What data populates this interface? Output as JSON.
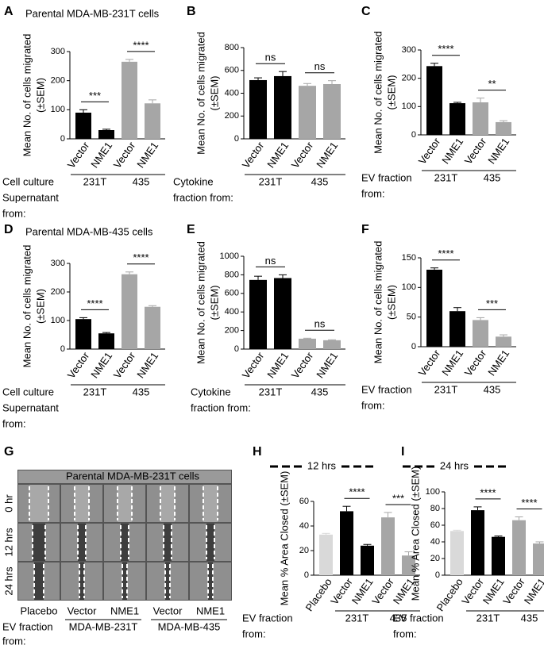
{
  "chart_data": [
    {
      "type": "bar",
      "label": "A",
      "title": "Parental MDA-MB-231T cells",
      "ylabel": [
        "Mean No. of cells migrated",
        "(±SEM)"
      ],
      "categories": [
        "Vector",
        "NME1",
        "Vector",
        "NME1"
      ],
      "values": [
        90,
        30,
        265,
        122
      ],
      "errors": [
        10,
        3,
        8,
        12
      ],
      "colors": [
        "#000000",
        "#000000",
        "#a6a6a6",
        "#a6a6a6"
      ],
      "ylim": [
        0,
        300
      ],
      "yticks": [
        0,
        100,
        200,
        300
      ],
      "groups": [
        {
          "name": "231T",
          "significance": "***"
        },
        {
          "name": "435",
          "significance": "****"
        }
      ],
      "xlabel": [
        "Cell  culture",
        "Supernatant",
        "from:"
      ]
    },
    {
      "type": "bar",
      "label": "B",
      "ylabel": [
        "Mean No. of cells migrated",
        "(±SEM)"
      ],
      "categories": [
        "Vector",
        "NME1",
        "Vector",
        "NME1"
      ],
      "values": [
        515,
        550,
        465,
        480
      ],
      "errors": [
        20,
        40,
        20,
        30
      ],
      "colors": [
        "#000000",
        "#000000",
        "#a6a6a6",
        "#a6a6a6"
      ],
      "ylim": [
        0,
        800
      ],
      "yticks": [
        0,
        200,
        400,
        600,
        800
      ],
      "groups": [
        {
          "name": "231T",
          "significance": "ns"
        },
        {
          "name": "435",
          "significance": "ns"
        }
      ],
      "xlabel": [
        "Cytokine",
        "fraction from:"
      ]
    },
    {
      "type": "bar",
      "label": "C",
      "ylabel": [
        "Mean No. of cells migrated",
        "(±SEM)"
      ],
      "categories": [
        "Vector",
        "NME1",
        "Vector",
        "NME1"
      ],
      "values": [
        243,
        112,
        115,
        45
      ],
      "errors": [
        10,
        3,
        15,
        5
      ],
      "colors": [
        "#000000",
        "#000000",
        "#a6a6a6",
        "#a6a6a6"
      ],
      "ylim": [
        0,
        300
      ],
      "yticks": [
        0,
        100,
        200,
        300
      ],
      "groups": [
        {
          "name": "231T",
          "significance": "****"
        },
        {
          "name": "435",
          "significance": "**"
        }
      ],
      "xlabel": [
        "EV fraction",
        "from:"
      ]
    },
    {
      "type": "bar",
      "label": "D",
      "title": "Parental MDA-MB-435 cells",
      "ylabel": [
        "Mean No. of cells migrated",
        "(±SEM)"
      ],
      "categories": [
        "Vector",
        "NME1",
        "Vector",
        "NME1"
      ],
      "values": [
        105,
        55,
        262,
        148
      ],
      "errors": [
        5,
        3,
        8,
        4
      ],
      "colors": [
        "#000000",
        "#000000",
        "#a6a6a6",
        "#a6a6a6"
      ],
      "ylim": [
        0,
        300
      ],
      "yticks": [
        0,
        100,
        200,
        300
      ],
      "groups": [
        {
          "name": "231T",
          "significance": "****"
        },
        {
          "name": "435",
          "significance": "****"
        }
      ],
      "xlabel": [
        "Cell  culture",
        "Supernatant",
        "from:"
      ]
    },
    {
      "type": "bar",
      "label": "E",
      "ylabel": [
        "Mean No. of cells migrated",
        "(±SEM)"
      ],
      "categories": [
        "Vector",
        "NME1",
        "Vector",
        "NME1"
      ],
      "values": [
        745,
        765,
        112,
        95
      ],
      "errors": [
        40,
        35,
        5,
        5
      ],
      "colors": [
        "#000000",
        "#000000",
        "#a6a6a6",
        "#a6a6a6"
      ],
      "ylim": [
        0,
        1000
      ],
      "yticks": [
        0,
        200,
        400,
        600,
        800,
        1000
      ],
      "groups": [
        {
          "name": "231T",
          "significance": "ns"
        },
        {
          "name": "435",
          "significance": "ns"
        }
      ],
      "xlabel": [
        "Cytokine",
        "fraction from:"
      ]
    },
    {
      "type": "bar",
      "label": "F",
      "ylabel": [
        "Mean No. of cells migrated",
        "(±SEM)"
      ],
      "categories": [
        "Vector",
        "NME1",
        "Vector",
        "NME1"
      ],
      "values": [
        130,
        60,
        45,
        17
      ],
      "errors": [
        3,
        6,
        4,
        3
      ],
      "colors": [
        "#000000",
        "#000000",
        "#a6a6a6",
        "#a6a6a6"
      ],
      "ylim": [
        0,
        150
      ],
      "yticks": [
        0,
        50,
        100,
        150
      ],
      "groups": [
        {
          "name": "231T",
          "significance": "****"
        },
        {
          "name": "435",
          "significance": "***"
        }
      ],
      "xlabel": [
        "EV fraction",
        "from:"
      ]
    },
    {
      "type": "bar",
      "label": "H",
      "header": "12 hrs",
      "ylabel": [
        "Mean % Area Closed (±SEM)"
      ],
      "categories": [
        "Placebo",
        "Vector",
        "NME1",
        "Vector",
        "NME1"
      ],
      "values": [
        33,
        52,
        24,
        47,
        16
      ],
      "errors": [
        1,
        4,
        1,
        4,
        3
      ],
      "colors": [
        "#d9d9d9",
        "#000000",
        "#000000",
        "#a6a6a6",
        "#a6a6a6"
      ],
      "ylim": [
        0,
        60
      ],
      "yticks": [
        0,
        20,
        40,
        60
      ],
      "groups": [
        {
          "name": "231T",
          "significance": "****"
        },
        {
          "name": "435",
          "significance": "***"
        }
      ],
      "xlabel": [
        "EV fraction",
        "from:"
      ]
    },
    {
      "type": "bar",
      "label": "I",
      "header": "24 hrs",
      "ylabel": [
        "Mean % Area Closed (±SEM)"
      ],
      "categories": [
        "Placebo",
        "Vector",
        "NME1",
        "Vector",
        "NME1"
      ],
      "values": [
        53,
        78,
        46,
        66,
        38
      ],
      "errors": [
        1,
        4,
        1,
        4,
        2
      ],
      "colors": [
        "#d9d9d9",
        "#000000",
        "#000000",
        "#a6a6a6",
        "#a6a6a6"
      ],
      "ylim": [
        0,
        100
      ],
      "yticks": [
        0,
        20,
        40,
        60,
        80,
        100
      ],
      "groups": [
        {
          "name": "231T",
          "significance": "****"
        },
        {
          "name": "435",
          "significance": "****"
        }
      ],
      "xlabel": [
        "EV fraction",
        "from:"
      ]
    }
  ],
  "micrograph": {
    "label": "G",
    "title": "Parental MDA-MB-231T cells",
    "rows": [
      "0 hr",
      "12 hrs",
      "24 hrs"
    ],
    "columns": [
      "Placebo",
      "Vector",
      "NME1",
      "Vector",
      "NME1"
    ],
    "groups": [
      "MDA-MB-231T",
      "MDA-MB-435"
    ],
    "xlabel": [
      "EV fraction",
      "from:"
    ]
  }
}
